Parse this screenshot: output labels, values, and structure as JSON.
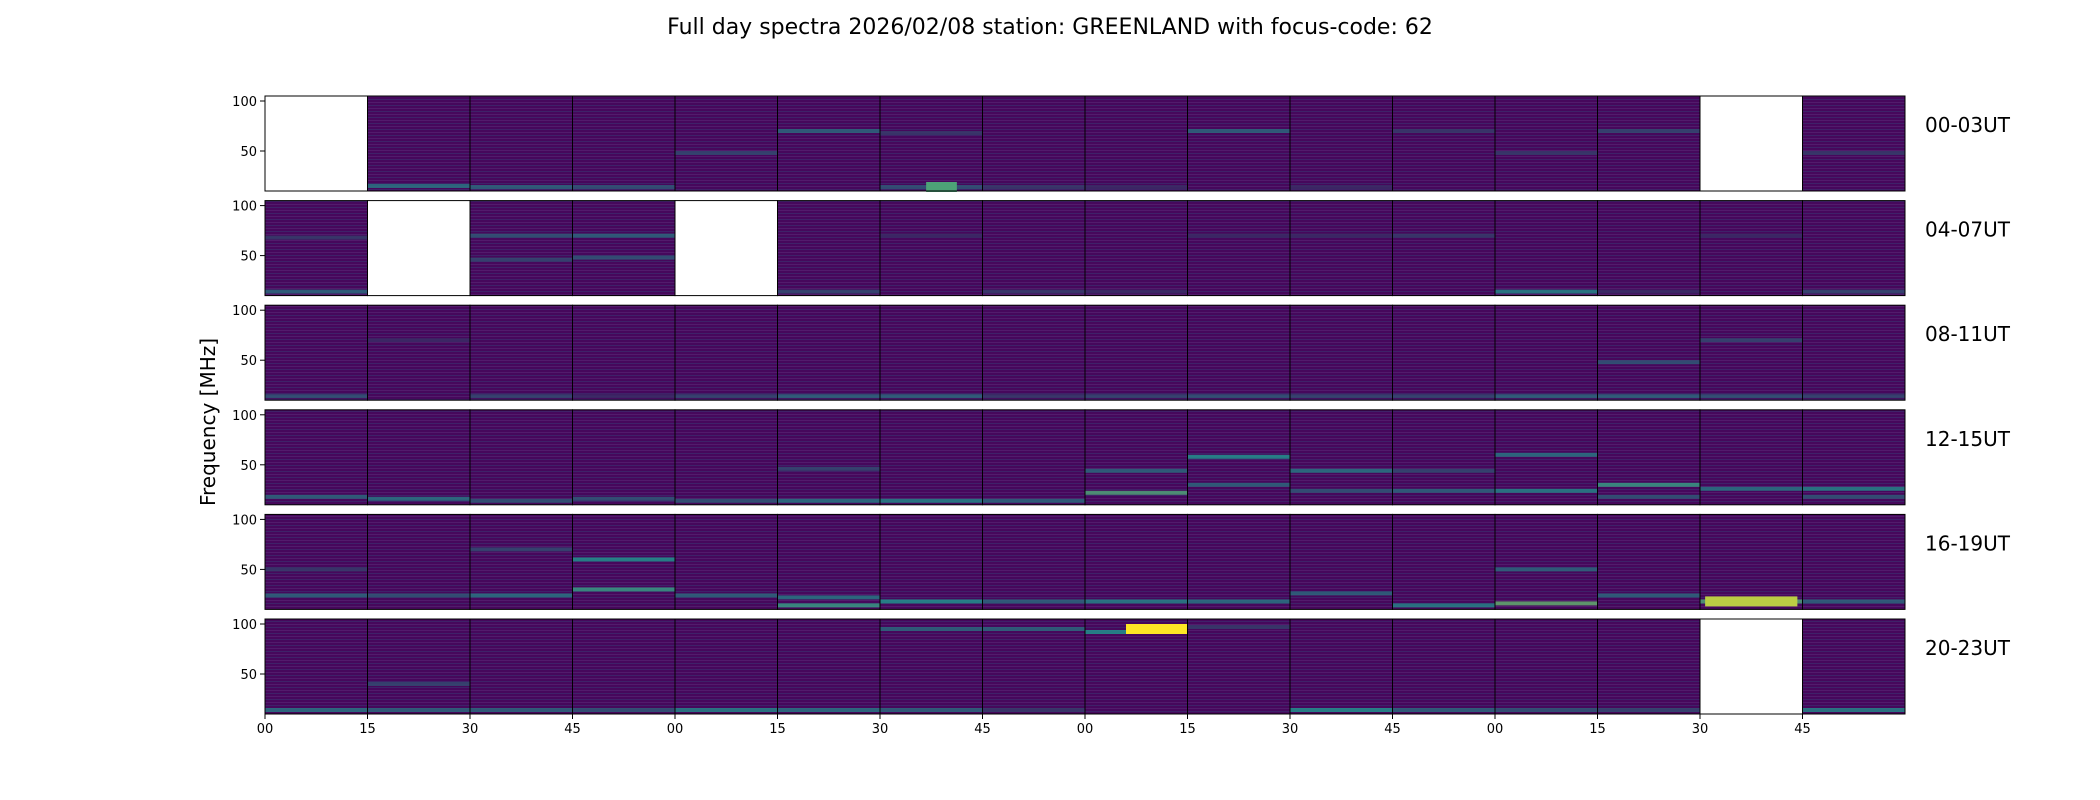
{
  "chart_data": {
    "type": "heatmap",
    "title": "Full day spectra 2026/02/08 station: GREENLAND with focus-code: 62",
    "ylabel": "Frequency [MHz]",
    "ylim": [
      10,
      105
    ],
    "yticks": [
      100,
      50
    ],
    "xticks": [
      "00",
      "15",
      "30",
      "45",
      "00",
      "15",
      "30",
      "45",
      "00",
      "15",
      "30",
      "45",
      "00",
      "15",
      "30",
      "45"
    ],
    "colormap": {
      "low": "#440154",
      "mid": "#21918c",
      "high": "#fde725"
    },
    "rows": [
      {
        "label": "00-03UT",
        "panels": [
          {
            "missing": true
          },
          {
            "bands": [
              [
                15,
                0.4
              ]
            ]
          },
          {
            "bands": [
              [
                14,
                0.35
              ]
            ]
          },
          {
            "bands": [
              [
                14,
                0.3
              ]
            ]
          },
          {
            "bands": [
              [
                48,
                0.25
              ]
            ]
          },
          {
            "bands": [
              [
                70,
                0.35
              ]
            ]
          },
          {
            "bands": [
              [
                14,
                0.3
              ],
              [
                68,
                0.2
              ]
            ],
            "hot": [
              [
                0.45,
                0.75,
                14,
                0.6
              ]
            ]
          },
          {
            "bands": [
              [
                14,
                0.2
              ]
            ]
          },
          {
            "bands": [
              [
                14,
                0.15
              ]
            ]
          },
          {
            "bands": [
              [
                70,
                0.35
              ]
            ]
          },
          {
            "bands": [
              [
                14,
                0.15
              ]
            ]
          },
          {
            "bands": [
              [
                70,
                0.2
              ]
            ]
          },
          {
            "bands": [
              [
                48,
                0.2
              ]
            ]
          },
          {
            "bands": [
              [
                70,
                0.25
              ]
            ]
          },
          {
            "missing": true
          },
          {
            "bands": [
              [
                48,
                0.2
              ]
            ]
          }
        ]
      },
      {
        "label": "04-07UT",
        "panels": [
          {
            "bands": [
              [
                14,
                0.35
              ],
              [
                68,
                0.2
              ]
            ]
          },
          {
            "missing": true
          },
          {
            "bands": [
              [
                70,
                0.3
              ],
              [
                46,
                0.25
              ]
            ]
          },
          {
            "bands": [
              [
                70,
                0.35
              ],
              [
                48,
                0.3
              ]
            ]
          },
          {
            "missing": true
          },
          {
            "bands": [
              [
                14,
                0.25
              ]
            ]
          },
          {
            "bands": [
              [
                70,
                0.15
              ]
            ]
          },
          {
            "bands": [
              [
                14,
                0.2
              ]
            ]
          },
          {
            "bands": [
              [
                14,
                0.15
              ]
            ]
          },
          {
            "bands": [
              [
                70,
                0.15
              ]
            ]
          },
          {
            "bands": [
              [
                70,
                0.15
              ]
            ]
          },
          {
            "bands": [
              [
                70,
                0.2
              ]
            ]
          },
          {
            "bands": [
              [
                14,
                0.45
              ]
            ]
          },
          {
            "bands": [
              [
                14,
                0.15
              ]
            ]
          },
          {
            "bands": [
              [
                70,
                0.15
              ]
            ]
          },
          {
            "bands": [
              [
                14,
                0.25
              ]
            ]
          }
        ]
      },
      {
        "label": "08-11UT",
        "panels": [
          {
            "bands": [
              [
                14,
                0.3
              ]
            ]
          },
          {
            "bands": [
              [
                70,
                0.15
              ]
            ]
          },
          {
            "bands": [
              [
                14,
                0.25
              ]
            ]
          },
          {
            "bands": [
              [
                14,
                0.15
              ]
            ]
          },
          {
            "bands": [
              [
                14,
                0.25
              ]
            ]
          },
          {
            "bands": [
              [
                14,
                0.35
              ]
            ]
          },
          {
            "bands": [
              [
                14,
                0.35
              ]
            ]
          },
          {
            "bands": [
              [
                14,
                0.2
              ]
            ]
          },
          {
            "bands": [
              [
                14,
                0.25
              ]
            ]
          },
          {
            "bands": [
              [
                14,
                0.3
              ]
            ]
          },
          {
            "bands": [
              [
                14,
                0.25
              ]
            ]
          },
          {
            "bands": [
              [
                14,
                0.25
              ]
            ]
          },
          {
            "bands": [
              [
                14,
                0.35
              ]
            ]
          },
          {
            "bands": [
              [
                14,
                0.35
              ],
              [
                48,
                0.3
              ]
            ]
          },
          {
            "bands": [
              [
                70,
                0.25
              ],
              [
                14,
                0.3
              ]
            ]
          },
          {
            "bands": [
              [
                14,
                0.25
              ]
            ]
          }
        ]
      },
      {
        "label": "12-15UT",
        "panels": [
          {
            "bands": [
              [
                18,
                0.35
              ]
            ]
          },
          {
            "bands": [
              [
                16,
                0.4
              ]
            ]
          },
          {
            "bands": [
              [
                14,
                0.3
              ]
            ]
          },
          {
            "bands": [
              [
                16,
                0.3
              ]
            ]
          },
          {
            "bands": [
              [
                14,
                0.3
              ]
            ]
          },
          {
            "bands": [
              [
                14,
                0.4
              ],
              [
                46,
                0.25
              ]
            ]
          },
          {
            "bands": [
              [
                14,
                0.45
              ]
            ]
          },
          {
            "bands": [
              [
                14,
                0.35
              ]
            ]
          },
          {
            "bands": [
              [
                22,
                0.6
              ],
              [
                44,
                0.35
              ]
            ]
          },
          {
            "bands": [
              [
                58,
                0.5
              ],
              [
                30,
                0.35
              ]
            ]
          },
          {
            "bands": [
              [
                44,
                0.4
              ],
              [
                24,
                0.3
              ]
            ]
          },
          {
            "bands": [
              [
                24,
                0.35
              ],
              [
                44,
                0.25
              ]
            ]
          },
          {
            "bands": [
              [
                24,
                0.45
              ],
              [
                60,
                0.4
              ]
            ]
          },
          {
            "bands": [
              [
                30,
                0.55
              ],
              [
                18,
                0.3
              ]
            ]
          },
          {
            "bands": [
              [
                26,
                0.4
              ]
            ]
          },
          {
            "bands": [
              [
                26,
                0.45
              ],
              [
                18,
                0.3
              ]
            ]
          }
        ]
      },
      {
        "label": "16-19UT",
        "panels": [
          {
            "bands": [
              [
                24,
                0.35
              ],
              [
                50,
                0.2
              ]
            ]
          },
          {
            "bands": [
              [
                24,
                0.3
              ]
            ]
          },
          {
            "bands": [
              [
                24,
                0.4
              ],
              [
                70,
                0.25
              ]
            ]
          },
          {
            "bands": [
              [
                30,
                0.55
              ],
              [
                60,
                0.5
              ]
            ]
          },
          {
            "bands": [
              [
                24,
                0.35
              ]
            ]
          },
          {
            "bands": [
              [
                14,
                0.55
              ],
              [
                22,
                0.4
              ]
            ]
          },
          {
            "bands": [
              [
                18,
                0.5
              ]
            ]
          },
          {
            "bands": [
              [
                18,
                0.35
              ]
            ]
          },
          {
            "bands": [
              [
                18,
                0.45
              ]
            ]
          },
          {
            "bands": [
              [
                18,
                0.4
              ]
            ]
          },
          {
            "bands": [
              [
                26,
                0.35
              ]
            ]
          },
          {
            "bands": [
              [
                14,
                0.45
              ]
            ]
          },
          {
            "bands": [
              [
                16,
                0.65
              ],
              [
                50,
                0.35
              ]
            ]
          },
          {
            "bands": [
              [
                24,
                0.35
              ]
            ]
          },
          {
            "bands": [
              [
                18,
                0.6
              ]
            ],
            "hot": [
              [
                0.05,
                0.95,
                18,
                0.85
              ]
            ]
          },
          {
            "bands": [
              [
                18,
                0.35
              ]
            ]
          }
        ]
      },
      {
        "label": "20-23UT",
        "panels": [
          {
            "bands": [
              [
                14,
                0.4
              ]
            ]
          },
          {
            "bands": [
              [
                14,
                0.35
              ],
              [
                40,
                0.25
              ]
            ]
          },
          {
            "bands": [
              [
                14,
                0.35
              ]
            ]
          },
          {
            "bands": [
              [
                14,
                0.3
              ]
            ]
          },
          {
            "bands": [
              [
                14,
                0.45
              ]
            ]
          },
          {
            "bands": [
              [
                14,
                0.4
              ]
            ]
          },
          {
            "bands": [
              [
                95,
                0.35
              ],
              [
                14,
                0.35
              ]
            ]
          },
          {
            "bands": [
              [
                95,
                0.35
              ],
              [
                14,
                0.2
              ]
            ]
          },
          {
            "bands": [
              [
                92,
                0.5
              ]
            ],
            "hot": [
              [
                0.4,
                1.0,
                95,
                1.0
              ]
            ]
          },
          {
            "bands": [
              [
                97,
                0.2
              ]
            ]
          },
          {
            "bands": [
              [
                14,
                0.5
              ]
            ]
          },
          {
            "bands": [
              [
                14,
                0.35
              ]
            ]
          },
          {
            "bands": [
              [
                14,
                0.3
              ]
            ]
          },
          {
            "bands": [
              [
                14,
                0.25
              ]
            ]
          },
          {
            "missing": true
          },
          {
            "bands": [
              [
                14,
                0.45
              ]
            ]
          }
        ]
      }
    ]
  }
}
